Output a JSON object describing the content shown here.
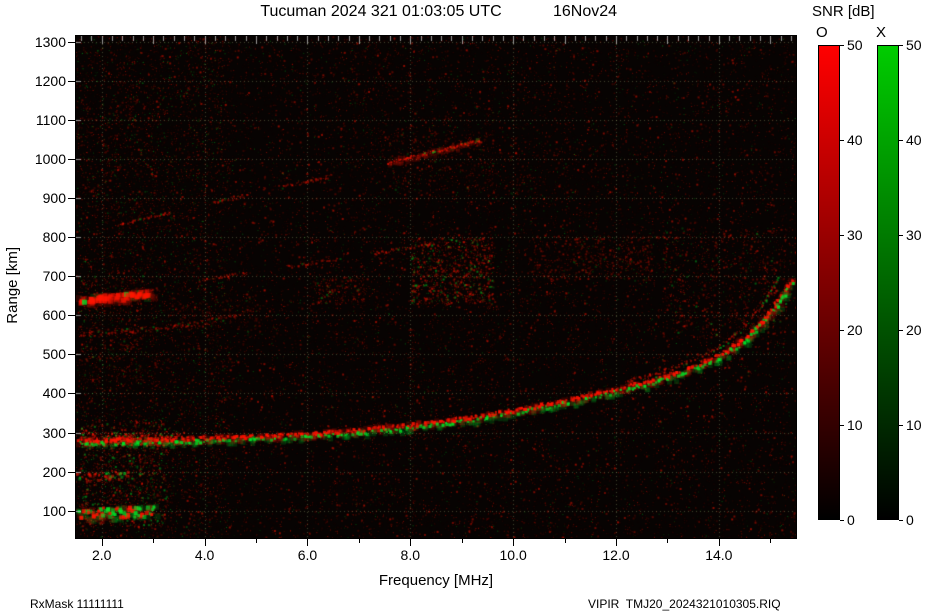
{
  "chart_data": {
    "type": "heatmap",
    "title": "Tucuman 2024 321 01:03:05 UTC",
    "subtitle": "16Nov24",
    "colorbar_title": "SNR [dB]",
    "xlabel": "Frequency [MHz]",
    "ylabel": "Range [km]",
    "xlim": [
      1.5,
      15.5
    ],
    "ylim": [
      30,
      1315
    ],
    "x_ticks": [
      2,
      4,
      6,
      8,
      10,
      12,
      14
    ],
    "x_tick_labels": [
      "2.0",
      "4.0",
      "6.0",
      "8.0",
      "10.0",
      "12.0",
      "14.0"
    ],
    "x_minor_step": 0.2,
    "y_ticks": [
      100,
      200,
      300,
      400,
      500,
      600,
      700,
      800,
      900,
      1000,
      1100,
      1200,
      1300
    ],
    "grid": true,
    "grid_color": "rgba(165,175,115,0.38)",
    "tick_color": "#b0b0b0",
    "background": "#070302",
    "colors": {
      "o_mode": "#ff1400",
      "x_mode": "#00e028"
    },
    "snr_range": [
      0,
      50
    ],
    "colorbars": [
      {
        "channel": "O",
        "color": "#ff0000",
        "ticks": [
          0,
          10,
          20,
          30,
          40,
          50
        ]
      },
      {
        "channel": "X",
        "color": "#00cc00",
        "ticks": [
          0,
          10,
          20,
          30,
          40,
          50
        ]
      }
    ],
    "traces": [
      {
        "name": "f-region-main-trace",
        "halo": true,
        "green_frac": 0.32,
        "green_dy": 3,
        "size": 3,
        "alpha": 0.95,
        "jitter": 1.8,
        "points": [
          [
            1.55,
            282
          ],
          [
            2.2,
            283
          ],
          [
            3.0,
            285
          ],
          [
            3.8,
            288
          ],
          [
            4.6,
            291
          ],
          [
            5.4,
            295
          ],
          [
            6.2,
            301
          ],
          [
            7.0,
            309
          ],
          [
            7.8,
            319
          ],
          [
            8.6,
            331
          ],
          [
            9.4,
            346
          ],
          [
            10.2,
            364
          ],
          [
            11.0,
            385
          ],
          [
            11.7,
            404
          ],
          [
            12.3,
            423
          ],
          [
            12.8,
            441
          ],
          [
            13.3,
            462
          ],
          [
            13.7,
            483
          ],
          [
            14.1,
            509
          ],
          [
            14.5,
            545
          ],
          [
            14.8,
            585
          ],
          [
            15.1,
            632
          ],
          [
            15.4,
            692
          ]
        ]
      },
      {
        "name": "f-region-upper-branch",
        "halo": false,
        "green_frac": 0.18,
        "green_dy": 2,
        "size": 2,
        "alpha": 0.55,
        "jitter": 1.8,
        "points": [
          [
            12.2,
            432
          ],
          [
            12.8,
            454
          ],
          [
            13.3,
            478
          ],
          [
            13.8,
            507
          ],
          [
            14.2,
            542
          ],
          [
            14.55,
            584
          ],
          [
            14.85,
            632
          ],
          [
            15.15,
            700
          ]
        ]
      },
      {
        "name": "second-hop-trace",
        "halo": false,
        "green_frac": 0.1,
        "green_dy": 0,
        "size": 2,
        "alpha": 0.4,
        "jitter": 2.5,
        "points": [
          [
            1.55,
            553
          ],
          [
            2.2,
            558
          ],
          [
            2.9,
            566
          ],
          [
            3.6,
            578
          ],
          [
            4.3,
            594
          ],
          [
            4.9,
            612
          ]
        ]
      },
      {
        "name": "echo-blob-650km",
        "halo": true,
        "green_frac": 0.08,
        "green_dy": 0,
        "size": 5,
        "alpha": 0.8,
        "jitter": 3,
        "points": [
          [
            1.55,
            643
          ],
          [
            2.0,
            648
          ],
          [
            2.45,
            654
          ],
          [
            2.9,
            661
          ]
        ]
      },
      {
        "name": "e-layer-100km",
        "halo": true,
        "green_frac": 0.45,
        "green_dy": 0,
        "size": 4,
        "alpha": 0.9,
        "jitter": 5,
        "points": [
          [
            1.55,
            96
          ],
          [
            2.0,
            98
          ],
          [
            2.5,
            100
          ],
          [
            2.95,
            102
          ]
        ]
      },
      {
        "name": "e-layer-190km",
        "halo": false,
        "green_frac": 0.25,
        "green_dy": 0,
        "size": 3,
        "alpha": 0.6,
        "jitter": 4,
        "points": [
          [
            1.55,
            188
          ],
          [
            2.0,
            190
          ],
          [
            2.5,
            193
          ]
        ]
      },
      {
        "name": "oblique-upper-seg1",
        "halo": false,
        "green_frac": 0.05,
        "green_dy": 0,
        "size": 2,
        "alpha": 0.45,
        "jitter": 1.5,
        "points": [
          [
            2.3,
            833
          ],
          [
            3.35,
            865
          ]
        ]
      },
      {
        "name": "oblique-upper-seg2",
        "halo": false,
        "green_frac": 0.05,
        "green_dy": 0,
        "size": 2,
        "alpha": 0.4,
        "jitter": 1.5,
        "points": [
          [
            4.15,
            889
          ],
          [
            4.8,
            909
          ]
        ]
      },
      {
        "name": "oblique-upper-seg3",
        "halo": false,
        "green_frac": 0.05,
        "green_dy": 0,
        "size": 2,
        "alpha": 0.45,
        "jitter": 1.5,
        "points": [
          [
            5.5,
            930
          ],
          [
            6.45,
            959
          ]
        ]
      },
      {
        "name": "oblique-upper-seg4",
        "halo": true,
        "green_frac": 0.06,
        "green_dy": 0,
        "size": 2,
        "alpha": 0.75,
        "jitter": 1.5,
        "points": [
          [
            7.55,
            993
          ],
          [
            9.35,
            1048
          ]
        ]
      },
      {
        "name": "oblique-lower-seg1",
        "halo": false,
        "green_frac": 0.05,
        "green_dy": 0,
        "size": 2,
        "alpha": 0.35,
        "jitter": 1.5,
        "points": [
          [
            2.6,
            660
          ],
          [
            3.05,
            669
          ]
        ]
      },
      {
        "name": "oblique-lower-seg2",
        "halo": false,
        "green_frac": 0.05,
        "green_dy": 0,
        "size": 2,
        "alpha": 0.4,
        "jitter": 1.5,
        "points": [
          [
            3.9,
            692
          ],
          [
            4.85,
            711
          ]
        ]
      },
      {
        "name": "oblique-lower-seg3",
        "halo": false,
        "green_frac": 0.05,
        "green_dy": 0,
        "size": 2,
        "alpha": 0.4,
        "jitter": 1.5,
        "points": [
          [
            5.6,
            726
          ],
          [
            6.6,
            747
          ]
        ]
      },
      {
        "name": "oblique-lower-seg4",
        "halo": false,
        "green_frac": 0.05,
        "green_dy": 0,
        "size": 2,
        "alpha": 0.5,
        "jitter": 1.5,
        "points": [
          [
            7.3,
            761
          ],
          [
            8.4,
            784
          ]
        ]
      }
    ],
    "clusters": [
      {
        "name": "spread-echo-8-9mhz",
        "f": [
          8.0,
          9.6
        ],
        "r": [
          630,
          800
        ],
        "n": 900,
        "green_frac": 0.22,
        "alpha": 0.5
      },
      {
        "name": "spread-echo-10-12mhz",
        "f": [
          10.3,
          12.7
        ],
        "r": [
          690,
          805
        ],
        "n": 500,
        "green_frac": 0.08,
        "alpha": 0.35
      },
      {
        "name": "spread-echo-right",
        "f": [
          12.9,
          15.3
        ],
        "r": [
          545,
          825
        ],
        "n": 700,
        "green_frac": 0.12,
        "alpha": 0.4
      },
      {
        "name": "spread-echo-high-range",
        "f": [
          7.4,
          9.6
        ],
        "r": [
          905,
          1075
        ],
        "n": 350,
        "green_frac": 0.08,
        "alpha": 0.3
      },
      {
        "name": "low-freq-clutter",
        "f": [
          1.55,
          3.3
        ],
        "r": [
          60,
          330
        ],
        "n": 900,
        "green_frac": 0.3,
        "alpha": 0.5
      },
      {
        "name": "low-freq-mid-clutter",
        "f": [
          1.55,
          2.8
        ],
        "r": [
          430,
          720
        ],
        "n": 350,
        "green_frac": 0.1,
        "alpha": 0.35
      },
      {
        "name": "blob-6-7mhz",
        "f": [
          6.1,
          7.1
        ],
        "r": [
          630,
          700
        ],
        "n": 180,
        "green_frac": 0.15,
        "alpha": 0.4
      },
      {
        "name": "faint-3-5mhz",
        "f": [
          3.3,
          5.2
        ],
        "r": [
          560,
          640
        ],
        "n": 150,
        "green_frac": 0.08,
        "alpha": 0.25
      },
      {
        "name": "faint-topleft",
        "f": [
          1.55,
          3.0
        ],
        "r": [
          850,
          1150
        ],
        "n": 200,
        "green_frac": 0.12,
        "alpha": 0.25
      },
      {
        "name": "faint-top-mid",
        "f": [
          5.5,
          8.0
        ],
        "r": [
          1080,
          1280
        ],
        "n": 150,
        "green_frac": 0.1,
        "alpha": 0.2
      },
      {
        "name": "faint-10-12-high",
        "f": [
          9.8,
          12.0
        ],
        "r": [
          900,
          1050
        ],
        "n": 150,
        "green_frac": 0.08,
        "alpha": 0.2
      },
      {
        "name": "left-trace-thickening",
        "f": [
          1.55,
          3.6
        ],
        "r": [
          268,
          302
        ],
        "n": 400,
        "green_frac": 0.25,
        "alpha": 0.7
      }
    ],
    "noise": {
      "red_dots": 20000,
      "green_dots": 3500,
      "left_extra": 4500,
      "stripes": 28
    }
  },
  "footer": {
    "left": "RxMask 11111111",
    "right": "VIPIR  TMJ20_2024321010305.RIQ"
  }
}
